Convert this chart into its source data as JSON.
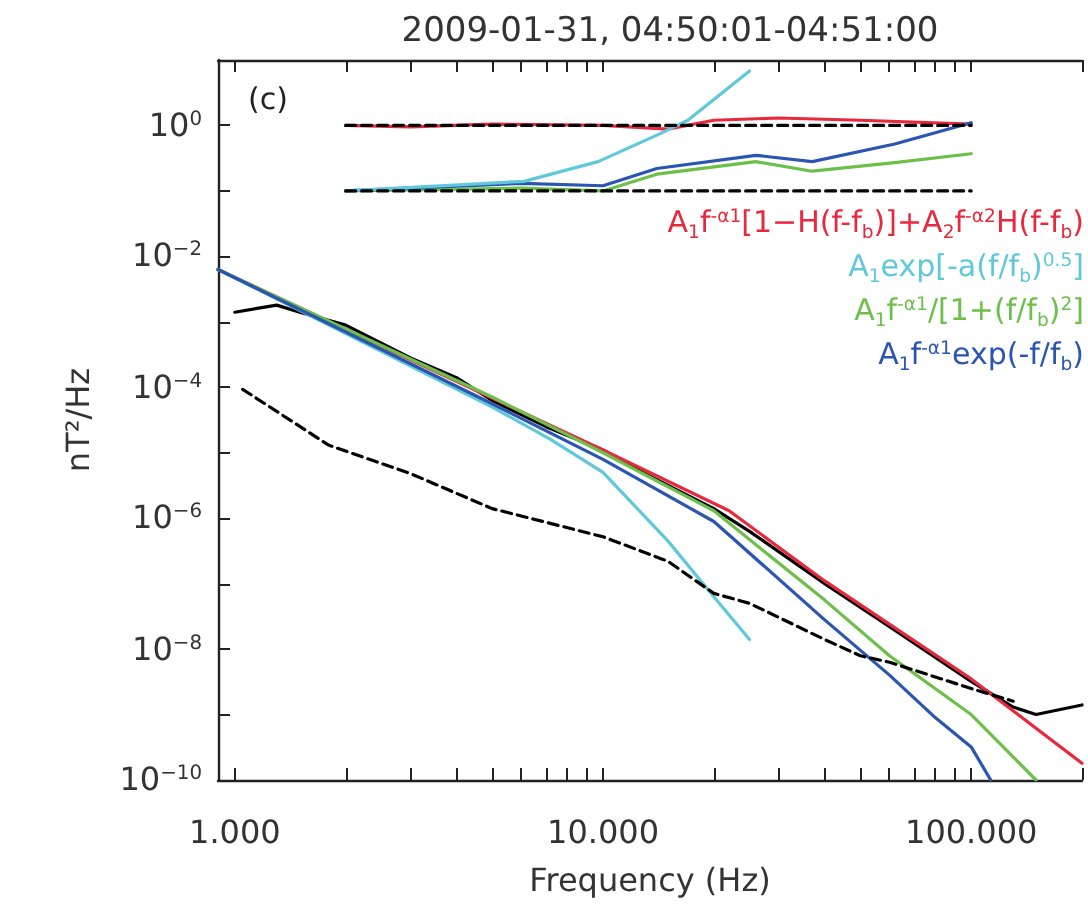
{
  "chart_data": {
    "type": "line",
    "title": "2009-01-31, 04:50:01-04:51:00",
    "xlabel": "Frequency (Hz)",
    "ylabel": "nT²/Hz",
    "annotations": [
      "(c)"
    ],
    "log": "xy",
    "grid": false,
    "legend": "top right",
    "marker": "none",
    "xlim": [
      0.9,
      200
    ],
    "ylim": [
      1e-10,
      10
    ],
    "xticks": [
      {
        "value": 1,
        "label": "1.000"
      },
      {
        "value": 2,
        "label": null
      },
      {
        "value": 3,
        "label": null
      },
      {
        "value": 4,
        "label": null
      },
      {
        "value": 5,
        "label": null
      },
      {
        "value": 6,
        "label": null
      },
      {
        "value": 7,
        "label": null
      },
      {
        "value": 8,
        "label": null
      },
      {
        "value": 9,
        "label": null
      },
      {
        "value": 10,
        "label": "10.000"
      },
      {
        "value": 20,
        "label": null
      },
      {
        "value": 30,
        "label": null
      },
      {
        "value": 40,
        "label": null
      },
      {
        "value": 50,
        "label": null
      },
      {
        "value": 60,
        "label": null
      },
      {
        "value": 70,
        "label": null
      },
      {
        "value": 80,
        "label": null
      },
      {
        "value": 90,
        "label": null
      },
      {
        "value": 100,
        "label": "100.000"
      },
      {
        "value": 200,
        "label": null
      }
    ],
    "yticks": [
      {
        "value": 1e-10,
        "label": "10$^{−10}$"
      },
      {
        "value": 1e-09,
        "label": null
      },
      {
        "value": 1e-08,
        "label": "10$^{−8}$"
      },
      {
        "value": 1e-07,
        "label": null
      },
      {
        "value": 1e-06,
        "label": "10$^{−6}$"
      },
      {
        "value": 1e-05,
        "label": null
      },
      {
        "value": 0.0001,
        "label": "10$^{−4}$"
      },
      {
        "value": 0.001,
        "label": null
      },
      {
        "value": 0.01,
        "label": "10$^{−2}$"
      },
      {
        "value": 0.1,
        "label": null
      },
      {
        "value": 1,
        "label": "10$^{0}$"
      }
    ],
    "series": [
      {
        "color": "#000000",
        "x": [
          1,
          1.3,
          1.5,
          2,
          3,
          4,
          5,
          7,
          10,
          13,
          20,
          25,
          40,
          60,
          100,
          130,
          150,
          200
        ],
        "values": [
          0.0014,
          0.0018,
          0.0014,
          0.00089,
          0.00028,
          0.00014,
          6.3e-05,
          2.5e-05,
          1.1e-05,
          4.8e-06,
          1.4e-06,
          6.3e-07,
          1e-07,
          2.2e-08,
          3.2e-09,
          1.3e-09,
          1e-09,
          1.4e-09
        ]
      },
      {
        "color": "#000000",
        "line_style": "dashed",
        "x": [
          1.05,
          1.8,
          3,
          5,
          10,
          15,
          20,
          25,
          40,
          50,
          60,
          100,
          130
        ],
        "values": [
          9.3e-05,
          1.3e-05,
          4.8e-06,
          1.4e-06,
          5.2e-07,
          2.2e-07,
          7.1e-08,
          5e-08,
          1.4e-08,
          7.9e-09,
          6.3e-09,
          2.5e-09,
          1.6e-09
        ]
      },
      {
        "name": "A$_{1}$f$^{-α1}$[1−H(f-f$_{b}$)]+A$_{2}$f$^{-α2}$H(f-f$_{b}$)",
        "color": "#e8283c",
        "x": [
          0.9,
          10,
          22,
          40,
          100,
          200
        ],
        "values": [
          0.0063,
          1.1e-05,
          1.3e-06,
          1.1e-07,
          3.5e-09,
          1.8e-10
        ]
      },
      {
        "name": "A$_{1}$exp[-a(f/f$_{b}$)$^{0.5}$]",
        "color": "#5fc8da",
        "x": [
          0.9,
          5,
          7.2,
          10,
          15,
          20,
          25
        ],
        "values": [
          0.0063,
          5e-05,
          1.6e-05,
          5e-06,
          4.5e-07,
          6.3e-08,
          1.4e-08
        ]
      },
      {
        "name": "A$_{1}$f$^{-α1}$/[1+(f/f$_{b}$)$^{2}$]",
        "color": "#6cc04a",
        "x": [
          0.9,
          5,
          10,
          20,
          40,
          60,
          100,
          150
        ],
        "values": [
          0.0063,
          7.1e-05,
          1e-05,
          1.3e-06,
          5.6e-08,
          7.9e-09,
          1e-09,
          1e-10
        ]
      },
      {
        "name": "A$_{1}$f$^{-α1}$exp(-f/f$_{b}$)",
        "color": "#2a55b0",
        "x": [
          0.9,
          5,
          10,
          20,
          40,
          60,
          80,
          100,
          113
        ],
        "values": [
          0.0063,
          5.6e-05,
          7.9e-06,
          8.9e-07,
          2.8e-08,
          4e-09,
          8.9e-10,
          3.2e-10,
          1e-10
        ]
      },
      {
        "color": "#000000",
        "line_style": "dashed",
        "x": [
          2,
          100
        ],
        "values": [
          1,
          1
        ]
      },
      {
        "color": "#000000",
        "line_style": "dashed",
        "x": [
          2,
          100
        ],
        "values": [
          0.1,
          0.1
        ]
      },
      {
        "color": "#e8283c",
        "x": [
          2,
          3,
          5,
          10,
          15,
          20,
          30,
          50,
          100
        ],
        "values": [
          1,
          0.95,
          1.05,
          1,
          0.88,
          1.2,
          1.3,
          1.2,
          1.05
        ]
      },
      {
        "color": "#6cc04a",
        "x": [
          2,
          6,
          10,
          14,
          26,
          37,
          62,
          100
        ],
        "values": [
          0.1,
          0.11,
          0.1,
          0.18,
          0.28,
          0.2,
          0.27,
          0.37
        ]
      },
      {
        "color": "#2a55b0",
        "x": [
          2,
          6,
          10,
          14,
          26,
          37,
          62,
          100
        ],
        "values": [
          0.1,
          0.13,
          0.12,
          0.22,
          0.35,
          0.28,
          0.52,
          1.1
        ]
      },
      {
        "color": "#5fc8da",
        "x": [
          2,
          6.1,
          9.7,
          14.3,
          17,
          25
        ],
        "values": [
          0.1,
          0.14,
          0.28,
          0.75,
          1.2,
          6.8
        ]
      }
    ]
  }
}
